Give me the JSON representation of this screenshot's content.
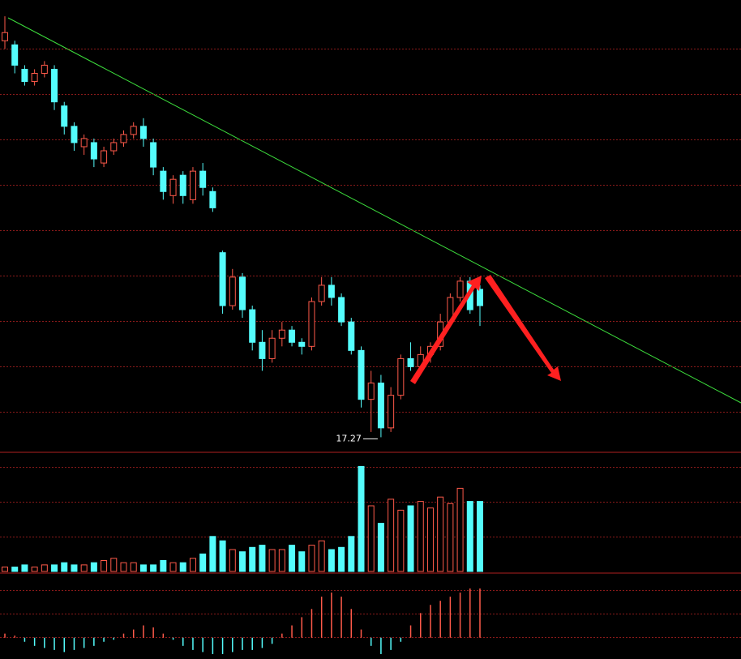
{
  "chart_data": {
    "type": "candlestick",
    "up_color": "#ff5a4a",
    "down_color": "#54fcfc",
    "ylim": [
      17,
      28
    ],
    "low_annotation": {
      "value": 17.27,
      "label": "17.27"
    },
    "open": [
      27.0,
      26.9,
      26.3,
      26.0,
      26.2,
      26.3,
      25.4,
      24.9,
      24.4,
      24.5,
      24.0,
      24.3,
      24.5,
      24.7,
      24.9,
      24.5,
      23.8,
      23.2,
      23.7,
      23.1,
      23.8,
      23.3,
      21.8,
      20.5,
      21.2,
      20.4,
      19.6,
      19.2,
      19.7,
      19.9,
      19.6,
      19.5,
      20.6,
      21.0,
      20.7,
      20.1,
      19.4,
      18.2,
      18.6,
      17.5,
      18.3,
      19.2,
      19.0,
      19.3,
      19.5,
      20.1,
      20.7,
      21.1,
      20.9
    ],
    "high": [
      27.6,
      27.0,
      26.4,
      26.3,
      26.5,
      26.4,
      25.5,
      25.0,
      24.7,
      24.6,
      24.4,
      24.6,
      24.8,
      25.0,
      25.1,
      24.6,
      23.9,
      23.7,
      23.8,
      23.9,
      24.0,
      23.4,
      21.85,
      21.4,
      21.3,
      20.5,
      19.9,
      19.9,
      20.1,
      20.0,
      19.7,
      20.7,
      21.2,
      21.2,
      20.8,
      20.2,
      19.5,
      18.9,
      18.8,
      18.5,
      19.3,
      19.6,
      19.5,
      19.6,
      20.3,
      20.8,
      21.2,
      21.2,
      21.0
    ],
    "low": [
      26.8,
      26.2,
      25.9,
      25.9,
      26.1,
      25.3,
      24.7,
      24.3,
      24.2,
      23.9,
      23.9,
      24.2,
      24.4,
      24.6,
      24.4,
      23.7,
      23.1,
      23.0,
      23.0,
      23.0,
      23.2,
      22.8,
      20.3,
      20.4,
      20.2,
      19.4,
      18.9,
      19.1,
      19.5,
      19.5,
      19.3,
      19.4,
      20.5,
      20.5,
      20.0,
      19.3,
      18.0,
      17.4,
      17.27,
      17.4,
      18.2,
      18.9,
      18.9,
      19.1,
      19.4,
      20.0,
      20.6,
      20.3,
      20.0
    ],
    "close": [
      27.2,
      26.4,
      26.0,
      26.2,
      26.4,
      25.5,
      24.9,
      24.5,
      24.6,
      24.1,
      24.3,
      24.5,
      24.7,
      24.9,
      24.6,
      23.9,
      23.3,
      23.6,
      23.2,
      23.8,
      23.4,
      22.9,
      20.5,
      21.2,
      20.4,
      19.6,
      19.2,
      19.7,
      19.9,
      19.6,
      19.5,
      20.6,
      21.0,
      20.7,
      20.1,
      19.4,
      18.2,
      18.6,
      17.5,
      18.3,
      19.2,
      19.0,
      19.3,
      19.5,
      20.1,
      20.7,
      21.1,
      20.4,
      20.5
    ],
    "volume": [
      2,
      2,
      3,
      2,
      3,
      3,
      4,
      3,
      3,
      4,
      5,
      6,
      4,
      4,
      3,
      3,
      5,
      4,
      4,
      6,
      8,
      16,
      14,
      10,
      9,
      11,
      12,
      10,
      10,
      12,
      9,
      12,
      14,
      10,
      11,
      16,
      48,
      30,
      22,
      33,
      28,
      30,
      32,
      29,
      34,
      31,
      38,
      32,
      32
    ],
    "volume_lim": [
      0,
      50
    ],
    "macd": [
      0.1,
      0.05,
      -0.1,
      -0.2,
      -0.25,
      -0.3,
      -0.35,
      -0.3,
      -0.25,
      -0.2,
      -0.1,
      -0.05,
      0.1,
      0.2,
      0.3,
      0.25,
      0.1,
      -0.05,
      -0.2,
      -0.3,
      -0.35,
      -0.4,
      -0.4,
      -0.35,
      -0.3,
      -0.3,
      -0.25,
      -0.15,
      0.1,
      0.3,
      0.5,
      0.7,
      1.0,
      1.1,
      1.0,
      0.7,
      0.2,
      -0.2,
      -0.4,
      -0.3,
      -0.1,
      0.3,
      0.6,
      0.8,
      0.9,
      1.0,
      1.1,
      1.2,
      1.2
    ],
    "macd_lim": [
      -0.5,
      1.2
    ]
  }
}
